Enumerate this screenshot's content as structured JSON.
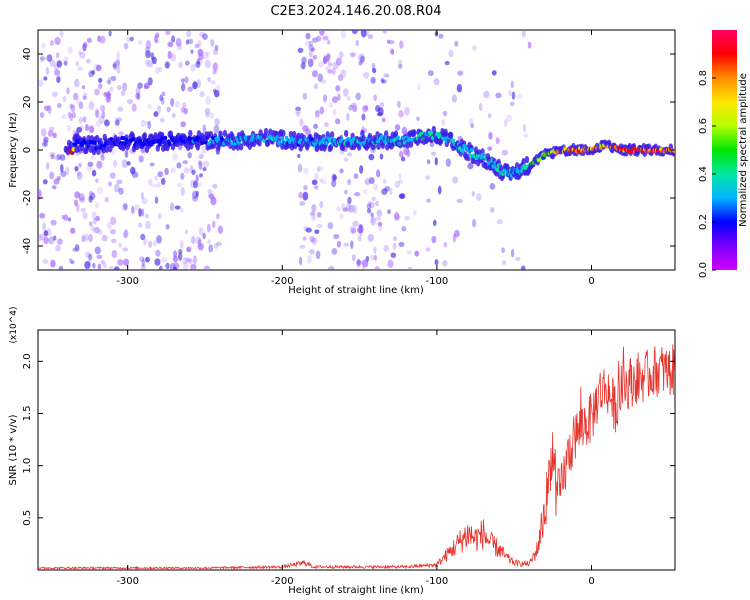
{
  "title": "C2E3.2024.146.20.08.R04",
  "colors": {
    "spectrogram_core": "#3c1ee6",
    "spectrogram_haze": "#a060ff",
    "snr_line": "#e8322c",
    "colorbar": [
      "#d000ff",
      "#7a00ff",
      "#0000ff",
      "#00b4ff",
      "#00e6a0",
      "#00e600",
      "#b4ff00",
      "#ffe600",
      "#ff8c00",
      "#ff0000",
      "#ff0064"
    ]
  },
  "chart_data": [
    {
      "type": "heatmap",
      "xlabel": "Height of straight line (km)",
      "ylabel": "Frequency (Hz)",
      "xlim": [
        -358,
        54
      ],
      "ylim": [
        -50,
        50
      ],
      "x_ticks": [
        -300,
        -200,
        -100,
        0
      ],
      "y_ticks": [
        -40,
        -20,
        0,
        20,
        40
      ],
      "colorbar": {
        "label": "Normalized spectral amplitude",
        "range": [
          0.0,
          1.0
        ],
        "ticks": [
          "0.0",
          "0.2",
          "0.4",
          "0.6",
          "0.8"
        ]
      },
      "ridge": {
        "x": [
          -335,
          -320,
          -305,
          -290,
          -270,
          -250,
          -230,
          -210,
          -195,
          -180,
          -160,
          -140,
          -120,
          -105,
          -95,
          -85,
          -75,
          -65,
          -55,
          -48,
          -40,
          -30,
          -20,
          -10,
          0,
          10,
          20,
          30,
          40,
          54
        ],
        "y": [
          3,
          2,
          4,
          3,
          4,
          4,
          4,
          5,
          4,
          3,
          4,
          4,
          4,
          6,
          5,
          1,
          -2,
          -5,
          -10,
          -9,
          -6,
          -2,
          0,
          0,
          0,
          2,
          0,
          0,
          0,
          0
        ],
        "amplitude": [
          0.2,
          0.2,
          0.2,
          0.2,
          0.2,
          0.25,
          0.3,
          0.35,
          0.3,
          0.3,
          0.35,
          0.35,
          0.35,
          0.4,
          0.35,
          0.35,
          0.35,
          0.4,
          0.35,
          0.3,
          0.45,
          0.55,
          0.8,
          0.85,
          0.85,
          0.75,
          0.85,
          0.9,
          0.9,
          0.9
        ]
      }
    },
    {
      "type": "line",
      "xlabel": "Height of straight line (km)",
      "ylabel": "SNR (10 * v/v)",
      "scale_label": "(x10^4)",
      "xlim": [
        -358,
        54
      ],
      "ylim": [
        0,
        2.3
      ],
      "x_ticks": [
        -300,
        -200,
        -100,
        0
      ],
      "y_ticks": [
        "0.5",
        "1.0",
        "1.5",
        "2.0"
      ],
      "series": [
        {
          "x": [
            -358,
            -300,
            -250,
            -200,
            -185,
            -180,
            -150,
            -120,
            -100,
            -90,
            -80,
            -75,
            -70,
            -65,
            -60,
            -55,
            -50,
            -45,
            -40,
            -35,
            -30,
            -27,
            -25,
            -23,
            -20,
            -15,
            -10,
            -5,
            0,
            5,
            10,
            15,
            20,
            25,
            30,
            35,
            40,
            45,
            50,
            54
          ],
          "y": [
            0.02,
            0.02,
            0.02,
            0.03,
            0.07,
            0.03,
            0.03,
            0.03,
            0.05,
            0.2,
            0.35,
            0.3,
            0.35,
            0.25,
            0.2,
            0.12,
            0.07,
            0.06,
            0.06,
            0.2,
            0.6,
            0.95,
            1.2,
            0.7,
            0.75,
            1.1,
            1.3,
            1.4,
            1.45,
            1.7,
            1.75,
            1.55,
            1.75,
            1.8,
            1.85,
            1.85,
            1.9,
            1.92,
            1.9,
            1.92
          ]
        }
      ]
    }
  ]
}
